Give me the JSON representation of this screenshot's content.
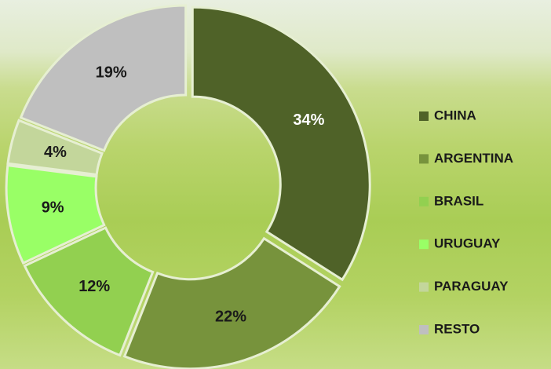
{
  "chart_data": {
    "type": "donut",
    "categories": [
      "CHINA",
      "ARGENTINA",
      "BRASIL",
      "URUGUAY",
      "PARAGUAY",
      "RESTO"
    ],
    "values": [
      34,
      22,
      12,
      9,
      4,
      19
    ],
    "value_labels": [
      "34%",
      "22%",
      "12%",
      "9%",
      "4%",
      "19%"
    ],
    "colors": [
      "#4f6228",
      "#77933c",
      "#92d050",
      "#99ff66",
      "#c3d69b",
      "#bfbfbf"
    ],
    "legend": "right"
  }
}
